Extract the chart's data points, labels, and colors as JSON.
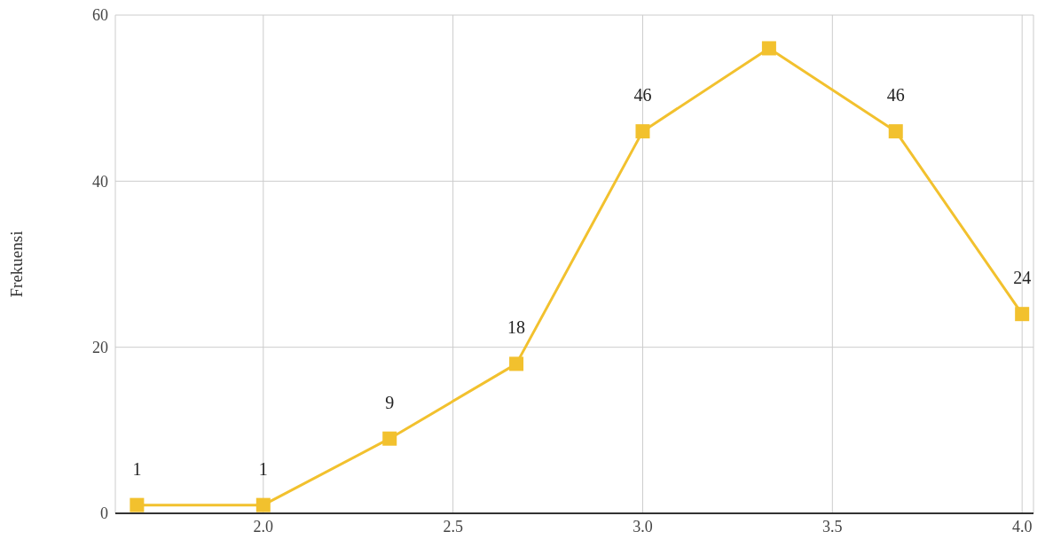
{
  "chart_data": {
    "type": "line",
    "ylabel": "Frekuensi",
    "x": [
      1.667,
      2.0,
      2.333,
      2.667,
      3.0,
      3.333,
      3.667,
      4.0
    ],
    "series": [
      {
        "color": "#f2c12e",
        "values": [
          1,
          1,
          9,
          18,
          46,
          56,
          46,
          24
        ],
        "value_labels": [
          "1",
          "1",
          "9",
          "18",
          "46",
          null,
          "46",
          "24"
        ]
      }
    ],
    "xlim": [
      1.61,
      4.03
    ],
    "xticks": [
      {
        "value": 2,
        "label": "2.0"
      },
      {
        "value": 2.5,
        "label": "2.5"
      },
      {
        "value": 3,
        "label": "3.0"
      },
      {
        "value": 3.5,
        "label": "3.5"
      },
      {
        "value": 4,
        "label": "4.0"
      }
    ],
    "ylim": [
      0,
      60
    ],
    "yticks": [
      0,
      20,
      40,
      60
    ],
    "grid": true,
    "marker": "square",
    "line_style": "solid"
  }
}
